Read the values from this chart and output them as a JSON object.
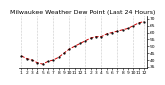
{
  "title": "Milwaukee Weather Dew Point (Last 24 Hours)",
  "line_color": "#cc0000",
  "dot_color": "#000000",
  "background_color": "#ffffff",
  "grid_color": "#999999",
  "y_label_color": "#000000",
  "x_ticks": [
    0,
    1,
    2,
    3,
    4,
    5,
    6,
    7,
    8,
    9,
    10,
    11,
    12,
    13,
    14,
    15,
    16,
    17,
    18,
    19,
    20,
    21,
    22,
    23
  ],
  "x_tick_labels": [
    "1",
    "2",
    "3",
    "4",
    "5",
    "6",
    "7",
    "8",
    "9",
    "10",
    "11",
    "12",
    "1",
    "2",
    "3",
    "4",
    "5",
    "6",
    "7",
    "8",
    "9",
    "10",
    "11",
    "12"
  ],
  "y_values": [
    43,
    41,
    40,
    38,
    37,
    39,
    40,
    42,
    45,
    48,
    50,
    52,
    54,
    56,
    57,
    57,
    59,
    60,
    61,
    62,
    63,
    65,
    67,
    68
  ],
  "ylim": [
    34,
    72
  ],
  "yticks": [
    35,
    40,
    45,
    50,
    55,
    60,
    65,
    70
  ],
  "vgrid_positions": [
    0,
    3,
    6,
    9,
    12,
    15,
    18,
    21,
    23
  ],
  "title_fontsize": 4.5,
  "tick_fontsize": 3.2,
  "linewidth": 0.7,
  "markersize": 1.2,
  "linestyle": "--"
}
